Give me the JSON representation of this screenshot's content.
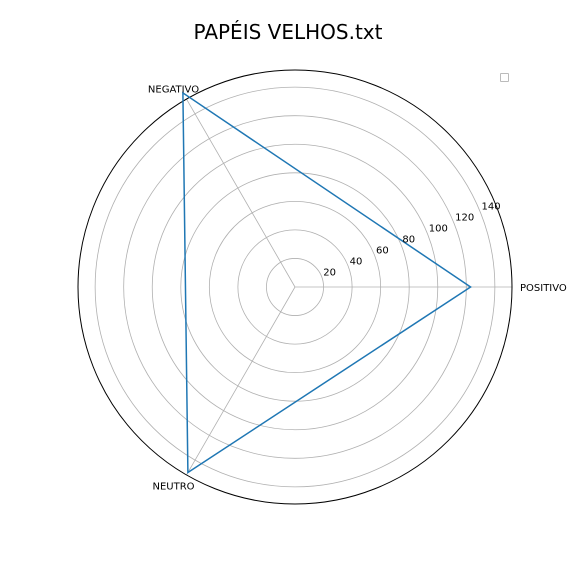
{
  "chart_data": {
    "type": "radar",
    "title": "PAPÉIS VELHOS.txt",
    "categories": [
      "POSITIVO",
      "NEGATIVO",
      "NEUTRO"
    ],
    "series": [
      {
        "values": [
          123,
          157,
          150
        ],
        "color": "#1f77b4"
      }
    ],
    "r_ticks": [
      "20",
      "40",
      "60",
      "80",
      "100",
      "120",
      "140"
    ],
    "r_max": 152,
    "grid": true,
    "legend": "top-right (empty)"
  }
}
